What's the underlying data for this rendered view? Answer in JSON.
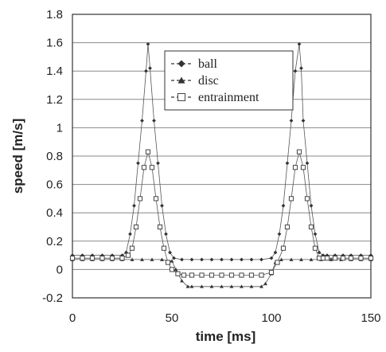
{
  "chart_data": {
    "type": "scatter",
    "xlabel": "time [ms]",
    "ylabel": "speed [m/s]",
    "xlim": [
      0,
      150
    ],
    "ylim": [
      -0.2,
      1.8
    ],
    "xticks": [
      "0",
      "50",
      "100",
      "150"
    ],
    "yticks": [
      "-0.2",
      "0",
      "0.2",
      "0.4",
      "0.6",
      "0.8",
      "1",
      "1.2",
      "1.4",
      "1.6",
      "1.8"
    ],
    "grid": "horizontal",
    "legend_position": "top-right",
    "series": [
      {
        "name": "ball",
        "marker": "diamond-filled",
        "color": "#333333",
        "x": [
          0,
          5,
          10,
          15,
          20,
          25,
          27,
          29,
          31,
          33,
          35,
          37,
          38,
          39,
          41,
          43,
          45,
          47,
          49,
          51,
          55,
          60,
          65,
          70,
          75,
          80,
          85,
          90,
          95,
          100,
          102,
          104,
          106,
          108,
          110,
          112,
          114,
          115,
          116,
          118,
          120,
          122,
          124,
          126,
          128,
          132,
          136,
          140,
          145,
          150
        ],
        "y": [
          0.1,
          0.1,
          0.1,
          0.1,
          0.1,
          0.1,
          0.12,
          0.25,
          0.45,
          0.75,
          1.05,
          1.4,
          1.59,
          1.42,
          1.05,
          0.75,
          0.45,
          0.25,
          0.12,
          0.08,
          0.07,
          0.07,
          0.07,
          0.07,
          0.07,
          0.07,
          0.07,
          0.07,
          0.07,
          0.08,
          0.12,
          0.25,
          0.45,
          0.75,
          1.05,
          1.4,
          1.59,
          1.42,
          1.05,
          0.75,
          0.45,
          0.25,
          0.12,
          0.1,
          0.1,
          0.1,
          0.1,
          0.1,
          0.1,
          0.1
        ]
      },
      {
        "name": "disc",
        "marker": "triangle-filled",
        "color": "#333333",
        "x": [
          0,
          5,
          10,
          15,
          20,
          25,
          30,
          35,
          40,
          45,
          50,
          52,
          55,
          58,
          60,
          65,
          70,
          75,
          80,
          85,
          90,
          95,
          97,
          100,
          102,
          105,
          110,
          115,
          120,
          125,
          130,
          135,
          140,
          145,
          150
        ],
        "y": [
          0.07,
          0.07,
          0.07,
          0.07,
          0.07,
          0.07,
          0.07,
          0.07,
          0.07,
          0.07,
          0.06,
          0.0,
          -0.08,
          -0.12,
          -0.12,
          -0.12,
          -0.12,
          -0.12,
          -0.12,
          -0.12,
          -0.12,
          -0.12,
          -0.1,
          -0.03,
          0.05,
          0.07,
          0.07,
          0.07,
          0.07,
          0.07,
          0.07,
          0.07,
          0.07,
          0.07,
          0.07
        ]
      },
      {
        "name": "entrainment",
        "marker": "square-open",
        "color": "#333333",
        "x": [
          0,
          5,
          10,
          15,
          20,
          25,
          28,
          30,
          32,
          34,
          36,
          38,
          40,
          42,
          44,
          46,
          48,
          50,
          53,
          56,
          60,
          65,
          70,
          75,
          80,
          85,
          90,
          95,
          100,
          103,
          106,
          108,
          110,
          112,
          114,
          116,
          118,
          120,
          122,
          124,
          126,
          128,
          132,
          136,
          140,
          145,
          150
        ],
        "y": [
          0.08,
          0.08,
          0.08,
          0.08,
          0.08,
          0.08,
          0.1,
          0.15,
          0.3,
          0.5,
          0.72,
          0.83,
          0.72,
          0.5,
          0.3,
          0.15,
          0.05,
          0.0,
          -0.03,
          -0.04,
          -0.04,
          -0.04,
          -0.04,
          -0.04,
          -0.04,
          -0.04,
          -0.04,
          -0.04,
          -0.02,
          0.05,
          0.15,
          0.3,
          0.5,
          0.72,
          0.83,
          0.72,
          0.5,
          0.3,
          0.15,
          0.08,
          0.08,
          0.08,
          0.08,
          0.08,
          0.08,
          0.08,
          0.08
        ]
      }
    ]
  }
}
